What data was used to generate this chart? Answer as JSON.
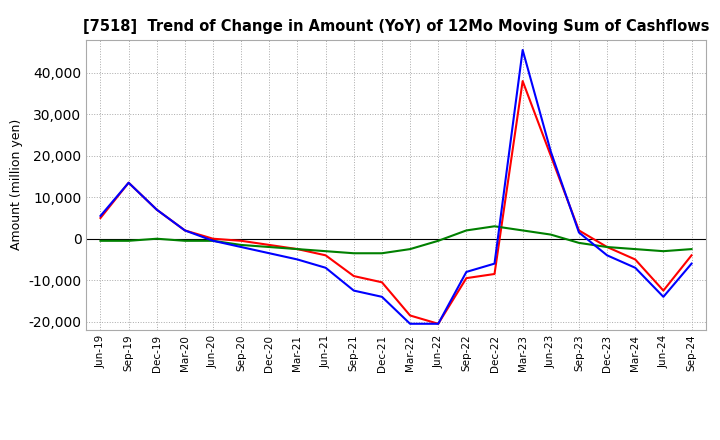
{
  "title": "[7518]  Trend of Change in Amount (YoY) of 12Mo Moving Sum of Cashflows",
  "ylabel": "Amount (million yen)",
  "ylim": [
    -22000,
    48000
  ],
  "yticks": [
    -20000,
    -10000,
    0,
    10000,
    20000,
    30000,
    40000
  ],
  "background_color": "#ffffff",
  "grid_color": "#aaaaaa",
  "x_labels": [
    "Jun-19",
    "Sep-19",
    "Dec-19",
    "Mar-20",
    "Jun-20",
    "Sep-20",
    "Dec-20",
    "Mar-21",
    "Jun-21",
    "Sep-21",
    "Dec-21",
    "Mar-22",
    "Jun-22",
    "Sep-22",
    "Dec-22",
    "Mar-23",
    "Jun-23",
    "Sep-23",
    "Dec-23",
    "Mar-24",
    "Jun-24",
    "Sep-24"
  ],
  "operating": [
    5000,
    13500,
    7000,
    2000,
    0,
    -500,
    -1500,
    -2500,
    -4000,
    -9000,
    -10500,
    -18500,
    -20500,
    -9500,
    -8500,
    38000,
    20000,
    2000,
    -2000,
    -5000,
    -12500,
    -4000
  ],
  "investing": [
    -500,
    -500,
    0,
    -500,
    -500,
    -1500,
    -2000,
    -2500,
    -3000,
    -3500,
    -3500,
    -2500,
    -500,
    2000,
    3000,
    2000,
    1000,
    -1000,
    -2000,
    -2500,
    -3000,
    -2500
  ],
  "free": [
    5500,
    13500,
    7000,
    2000,
    -500,
    -2000,
    -3500,
    -5000,
    -7000,
    -12500,
    -14000,
    -20500,
    -20500,
    -8000,
    -6000,
    45500,
    21000,
    1500,
    -4000,
    -7000,
    -14000,
    -6000
  ],
  "operating_color": "#ff0000",
  "investing_color": "#008000",
  "free_color": "#0000ff",
  "line_width": 1.5
}
